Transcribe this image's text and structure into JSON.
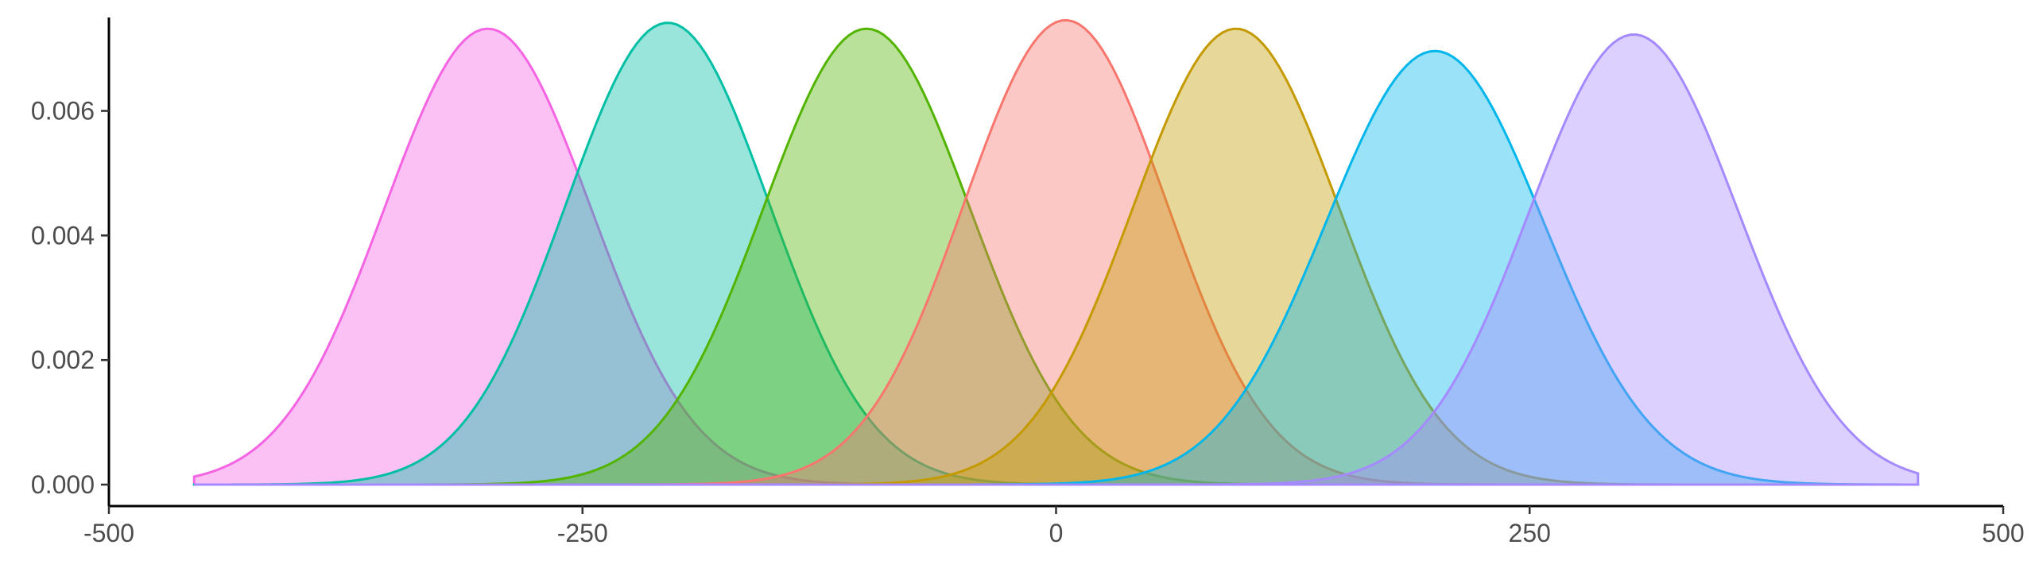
{
  "chart_data": {
    "type": "area",
    "title": "",
    "xlabel": "",
    "ylabel": "",
    "xlim": [
      -500,
      500
    ],
    "ylim": [
      0,
      0.0075
    ],
    "grid": false,
    "legend": "none",
    "x_range": [
      -455,
      455
    ],
    "x_ticks": [
      -500,
      -250,
      0,
      250,
      500
    ],
    "x_tick_labels": [
      "-500",
      "-250",
      "0",
      "250",
      "500"
    ],
    "y_ticks": [
      0,
      0.002,
      0.004,
      0.006
    ],
    "y_tick_labels": [
      "0.000",
      "0.002",
      "0.004",
      "0.006"
    ],
    "series": [
      {
        "mean": -300,
        "sd": 54.5,
        "color": "#F564E3"
      },
      {
        "mean": -205,
        "sd": 53.8,
        "color": "#00BFA4"
      },
      {
        "mean": -100,
        "sd": 54.5,
        "color": "#53B400"
      },
      {
        "mean": 5,
        "sd": 53.5,
        "color": "#F8766D"
      },
      {
        "mean": 95,
        "sd": 54.5,
        "color": "#C49A00"
      },
      {
        "mean": 200,
        "sd": 57.3,
        "color": "#00B6EB"
      },
      {
        "mean": 305,
        "sd": 55.2,
        "color": "#A58AFF"
      }
    ]
  }
}
